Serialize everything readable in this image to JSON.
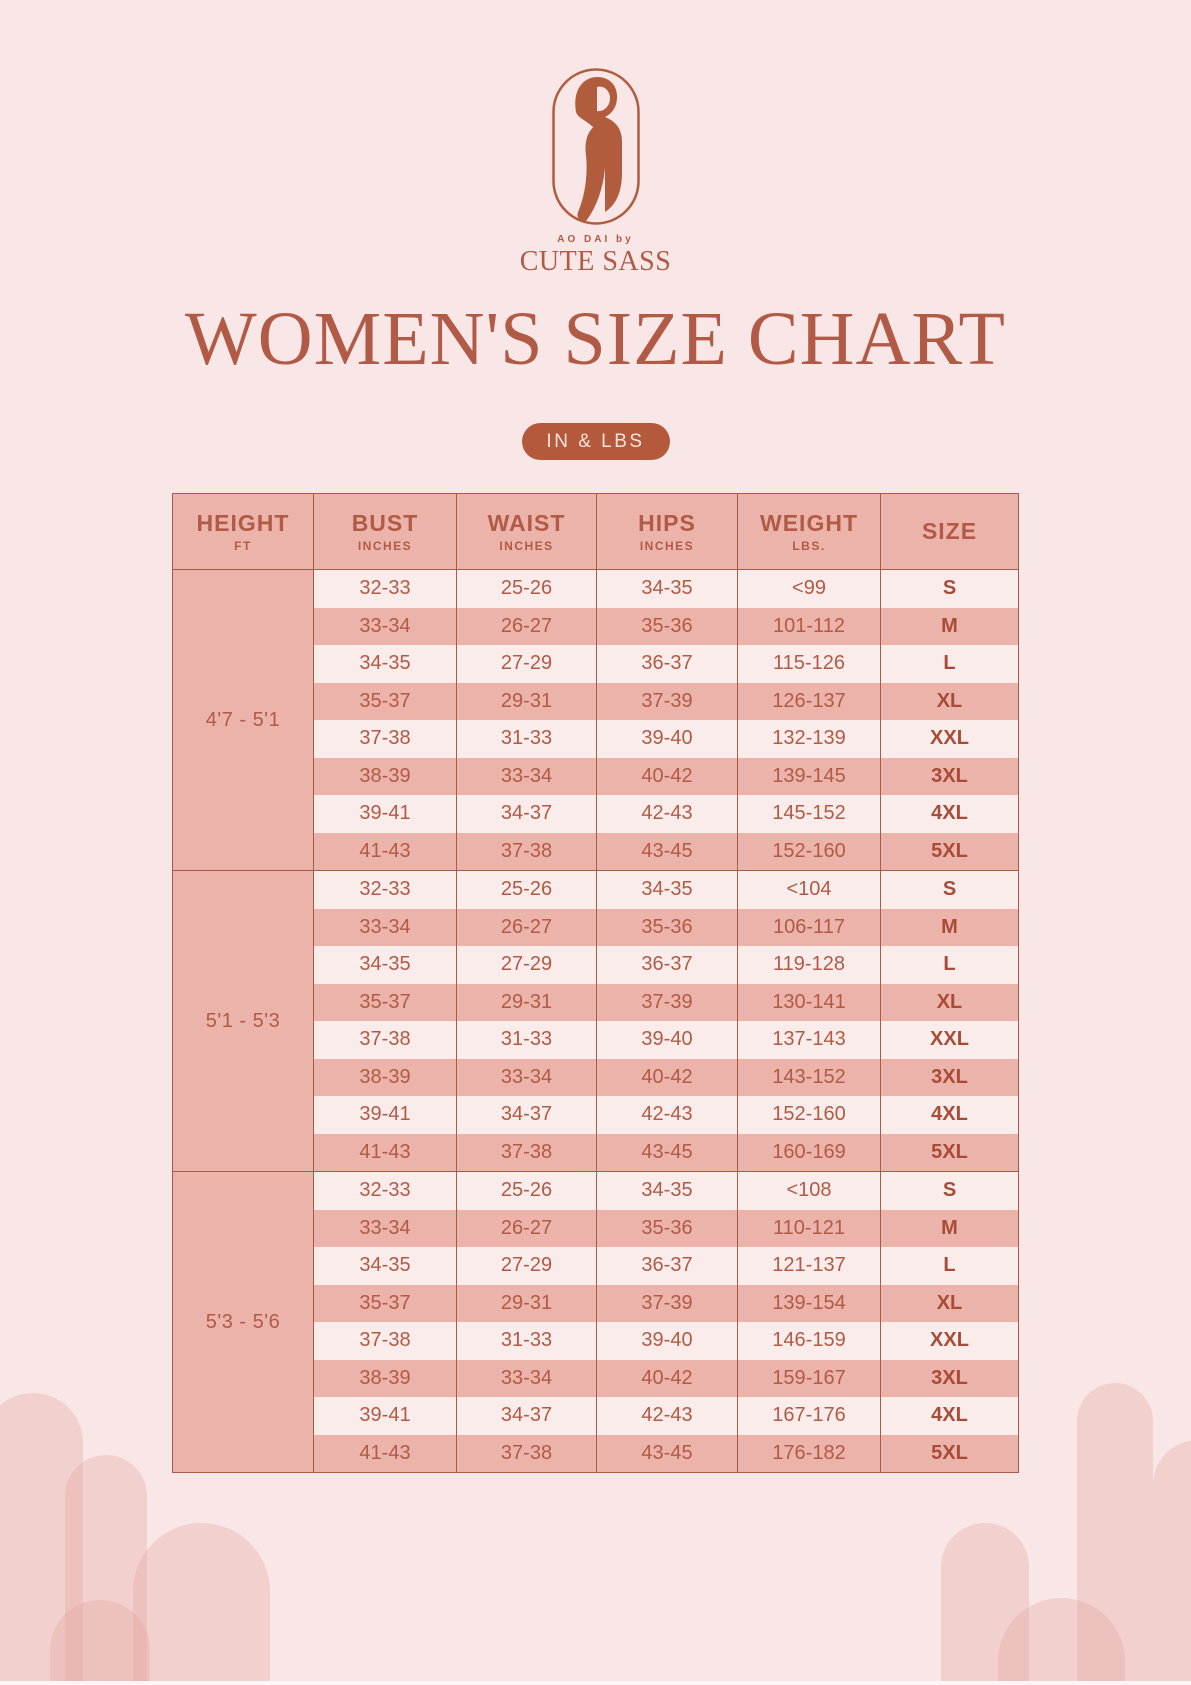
{
  "brand": {
    "tagline": "AO DAI by",
    "name": "CUTE SASS"
  },
  "title": "WOMEN'S SIZE CHART",
  "units_badge": "IN & LBS",
  "icons": {
    "logo": "woman-in-ao-dai-figure"
  },
  "colors": {
    "background": "#f8e7e6",
    "accent": "#b15a45",
    "table_pink": "#ecb3aa",
    "table_light": "#faeceb",
    "table_border": "#a55c4a",
    "badge_background": "#b5593c",
    "badge_text": "#f7e4da",
    "size_text": "#a84c38",
    "arch": "rgba(228,167,160,0.35)"
  },
  "chart_data": {
    "type": "table",
    "title": "WOMEN'S SIZE CHART",
    "units": "IN & LBS",
    "columns": [
      {
        "label": "HEIGHT",
        "sub": "FT"
      },
      {
        "label": "BUST",
        "sub": "INCHES"
      },
      {
        "label": "WAIST",
        "sub": "INCHES"
      },
      {
        "label": "HIPS",
        "sub": "INCHES"
      },
      {
        "label": "WEIGHT",
        "sub": "LBS."
      },
      {
        "label": "SIZE",
        "sub": ""
      }
    ],
    "groups": [
      {
        "height": "4'7 - 5'1",
        "rows": [
          [
            "32-33",
            "25-26",
            "34-35",
            "<99",
            "S"
          ],
          [
            "33-34",
            "26-27",
            "35-36",
            "101-112",
            "M"
          ],
          [
            "34-35",
            "27-29",
            "36-37",
            "115-126",
            "L"
          ],
          [
            "35-37",
            "29-31",
            "37-39",
            "126-137",
            "XL"
          ],
          [
            "37-38",
            "31-33",
            "39-40",
            "132-139",
            "XXL"
          ],
          [
            "38-39",
            "33-34",
            "40-42",
            "139-145",
            "3XL"
          ],
          [
            "39-41",
            "34-37",
            "42-43",
            "145-152",
            "4XL"
          ],
          [
            "41-43",
            "37-38",
            "43-45",
            "152-160",
            "5XL"
          ]
        ]
      },
      {
        "height": "5'1 - 5'3",
        "rows": [
          [
            "32-33",
            "25-26",
            "34-35",
            "<104",
            "S"
          ],
          [
            "33-34",
            "26-27",
            "35-36",
            "106-117",
            "M"
          ],
          [
            "34-35",
            "27-29",
            "36-37",
            "119-128",
            "L"
          ],
          [
            "35-37",
            "29-31",
            "37-39",
            "130-141",
            "XL"
          ],
          [
            "37-38",
            "31-33",
            "39-40",
            "137-143",
            "XXL"
          ],
          [
            "38-39",
            "33-34",
            "40-42",
            "143-152",
            "3XL"
          ],
          [
            "39-41",
            "34-37",
            "42-43",
            "152-160",
            "4XL"
          ],
          [
            "41-43",
            "37-38",
            "43-45",
            "160-169",
            "5XL"
          ]
        ]
      },
      {
        "height": "5'3 - 5'6",
        "rows": [
          [
            "32-33",
            "25-26",
            "34-35",
            "<108",
            "S"
          ],
          [
            "33-34",
            "26-27",
            "35-36",
            "110-121",
            "M"
          ],
          [
            "34-35",
            "27-29",
            "36-37",
            "121-137",
            "L"
          ],
          [
            "35-37",
            "29-31",
            "37-39",
            "139-154",
            "XL"
          ],
          [
            "37-38",
            "31-33",
            "39-40",
            "146-159",
            "XXL"
          ],
          [
            "38-39",
            "33-34",
            "40-42",
            "159-167",
            "3XL"
          ],
          [
            "39-41",
            "34-37",
            "42-43",
            "167-176",
            "4XL"
          ],
          [
            "41-43",
            "37-38",
            "43-45",
            "176-182",
            "5XL"
          ]
        ]
      }
    ]
  }
}
